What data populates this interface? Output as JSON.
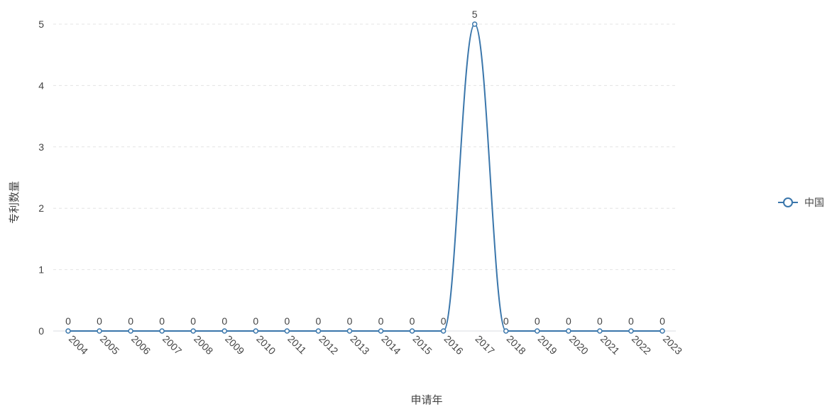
{
  "chart_data": {
    "type": "line",
    "title": "",
    "xlabel": "申请年",
    "ylabel": "专利数量",
    "categories": [
      "2004",
      "2005",
      "2006",
      "2007",
      "2008",
      "2009",
      "2010",
      "2011",
      "2012",
      "2013",
      "2014",
      "2015",
      "2016",
      "2017",
      "2018",
      "2019",
      "2020",
      "2021",
      "2022",
      "2023"
    ],
    "series": [
      {
        "name": "中国",
        "values": [
          0,
          0,
          0,
          0,
          0,
          0,
          0,
          0,
          0,
          0,
          0,
          0,
          0,
          5,
          0,
          0,
          0,
          0,
          0,
          0
        ]
      }
    ],
    "ylim": [
      0,
      5
    ],
    "yticks": [
      0,
      1,
      2,
      3,
      4,
      5
    ],
    "grid": "horizontal-dashed",
    "legend_position": "right",
    "colors": {
      "line": "#3a76ab",
      "marker_fill": "#ffffff",
      "grid": "#e4e4e4",
      "text": "#444444"
    }
  }
}
